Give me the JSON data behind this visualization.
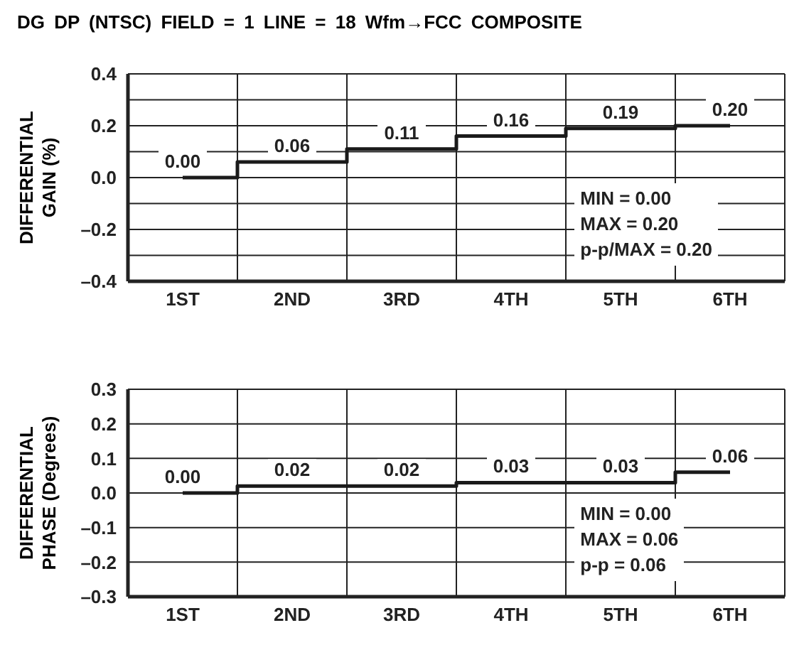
{
  "chart_data": [
    {
      "type": "step",
      "title": "DG DP (NTSC) FIELD = 1 LINE = 18 Wfm→FCC COMPOSITE",
      "ylabel": "DIFFERENTIAL GAIN (%)",
      "categories": [
        "1ST",
        "2ND",
        "3RD",
        "4TH",
        "5TH",
        "6TH"
      ],
      "values": [
        0.0,
        0.06,
        0.11,
        0.16,
        0.19,
        0.2
      ],
      "value_labels": [
        "0.00",
        "0.06",
        "0.11",
        "0.16",
        "0.19",
        "0.20"
      ],
      "color": "#1a1a1a",
      "ylim": [
        -0.4,
        0.4
      ],
      "yticks": [
        {
          "value": -0.4,
          "label": "–0.4"
        },
        {
          "value": -0.3,
          "label": null
        },
        {
          "value": -0.2,
          "label": "–0.2"
        },
        {
          "value": -0.1,
          "label": null
        },
        {
          "value": 0,
          "label": "0.0"
        },
        {
          "value": 0.1,
          "label": null
        },
        0.2,
        {
          "value": 0.3,
          "label": null
        },
        0.4
      ],
      "grid": true,
      "marker": "none",
      "annotations": [
        "MIN = 0.00",
        "MAX = 0.20",
        "p-p/MAX = 0.20"
      ]
    },
    {
      "type": "step",
      "ylabel": "DIFFERENTIAL PHASE (Degrees)",
      "categories": [
        "1ST",
        "2ND",
        "3RD",
        "4TH",
        "5TH",
        "6TH"
      ],
      "values": [
        0.0,
        0.02,
        0.02,
        0.03,
        0.03,
        0.06
      ],
      "value_labels": [
        "0.00",
        "0.02",
        "0.02",
        "0.03",
        "0.03",
        "0.06"
      ],
      "color": "#1a1a1a",
      "ylim": [
        -0.3,
        0.3
      ],
      "yticks": [
        {
          "value": -0.3,
          "label": "–0.3"
        },
        {
          "value": -0.2,
          "label": "–0.2"
        },
        {
          "value": -0.1,
          "label": "–0.1"
        },
        {
          "value": 0,
          "label": "0.0"
        },
        0.1,
        0.2,
        0.3
      ],
      "grid": true,
      "marker": "none",
      "annotations": [
        "MIN = 0.00",
        "MAX = 0.06",
        "p-p = 0.06"
      ]
    }
  ]
}
